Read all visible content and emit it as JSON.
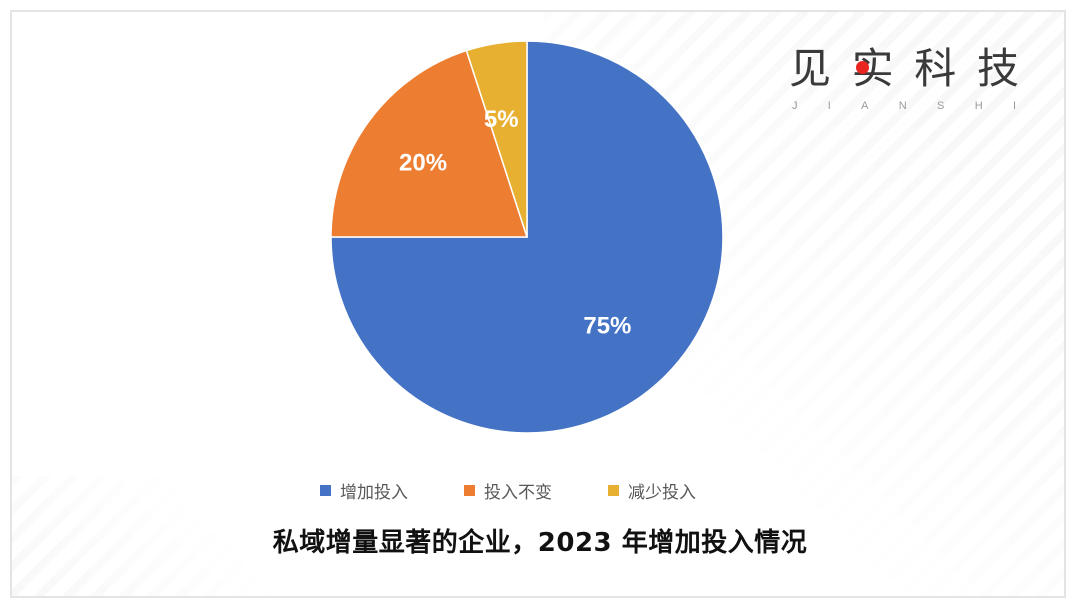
{
  "brand": {
    "chars": [
      "见",
      "实",
      "科",
      "技"
    ],
    "sub_letters": [
      "J",
      "I",
      "A",
      "N",
      "S",
      "H",
      "I"
    ],
    "dot_color": "#e8261f"
  },
  "chart_data": {
    "type": "pie",
    "start_angle_deg": 0,
    "direction": "clockwise",
    "slices": [
      {
        "name": "增加投入",
        "value": 75,
        "label": "75%",
        "color": "#4472c4"
      },
      {
        "name": "投入不变",
        "value": 20,
        "label": "20%",
        "color": "#ed7d31"
      },
      {
        "name": "减少投入",
        "value": 5,
        "label": "5%",
        "color": "#e8b030"
      }
    ],
    "legend_position": "bottom"
  },
  "caption": "私域增量显著的企业，2023 年增加投入情况"
}
